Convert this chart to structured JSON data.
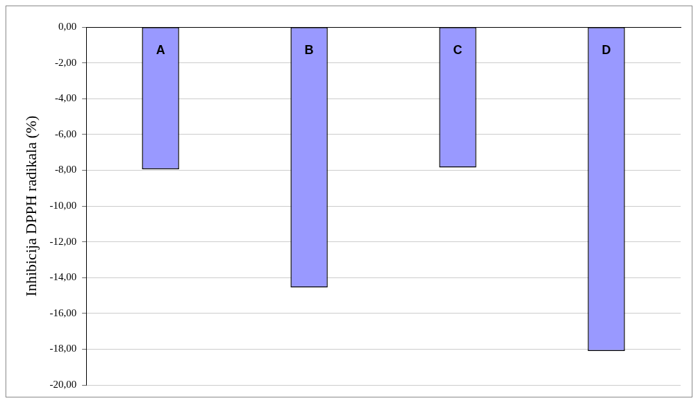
{
  "chart_data": {
    "type": "bar",
    "ylabel": "Inhibicija DPPH radikala (%)",
    "categories": [
      "A",
      "B",
      "C",
      "D"
    ],
    "values": [
      -7.95,
      -14.55,
      -7.85,
      -18.1
    ],
    "color": "#9999ff",
    "ylim": [
      -20,
      0
    ],
    "yticks": [
      {
        "value": 0,
        "label": "0,00"
      },
      {
        "value": -2,
        "label": "-2,00"
      },
      {
        "value": -4,
        "label": "-4,00"
      },
      {
        "value": -6,
        "label": "-6,00"
      },
      {
        "value": -8,
        "label": "-8,00"
      },
      {
        "value": -10,
        "label": "-10,00"
      },
      {
        "value": -12,
        "label": "-12,00"
      },
      {
        "value": -14,
        "label": "-14,00"
      },
      {
        "value": -16,
        "label": "-16,00"
      },
      {
        "value": -18,
        "label": "-18,00"
      },
      {
        "value": -20,
        "label": "-20,00"
      }
    ],
    "grid": "y",
    "legend": false
  }
}
